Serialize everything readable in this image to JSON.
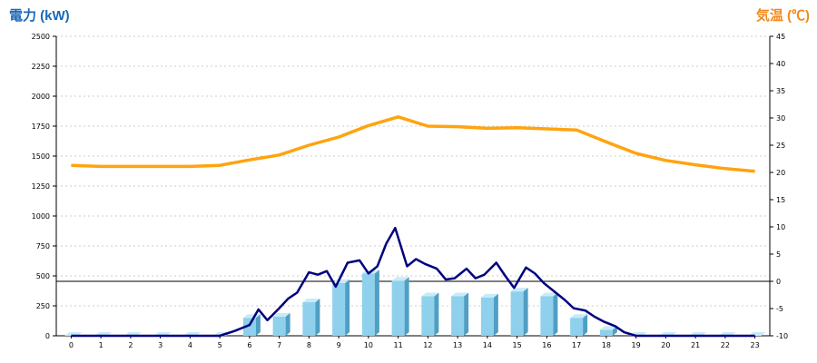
{
  "left_axis_title": "電力 (kW)",
  "right_axis_title": "気温 (℃)",
  "colors": {
    "bar_front": "#8fd0ec",
    "bar_side": "#4f9fc4",
    "bar_top": "#c8ebf8",
    "power_line": "#00007f",
    "temp_line": "#ffa30f",
    "grid": "#bdbdbd",
    "left_title": "#1b69b6",
    "right_title": "#f08a1c"
  },
  "chart_data": {
    "type": "bar",
    "categories": [
      "0",
      "1",
      "2",
      "3",
      "4",
      "5",
      "6",
      "7",
      "8",
      "9",
      "10",
      "11",
      "12",
      "13",
      "14",
      "15",
      "16",
      "17",
      "18",
      "19",
      "20",
      "21",
      "22",
      "23"
    ],
    "y_left": {
      "ticks": [
        "0",
        "250",
        "500",
        "750",
        "1000",
        "1250",
        "1500",
        "1750",
        "2000",
        "2250",
        "2500"
      ],
      "ylim": [
        0,
        2500
      ]
    },
    "y_right": {
      "ticks": [
        "-10",
        "-5",
        "0",
        "5",
        "10",
        "15",
        "20",
        "25",
        "30",
        "35",
        "40",
        "45"
      ],
      "ylim": [
        -10,
        45
      ]
    },
    "reference_line": {
      "axis": "right",
      "value": 0
    },
    "grid": true,
    "series": [
      {
        "type": "bar",
        "axis": "left",
        "values": [
          0,
          0,
          0,
          0,
          0,
          0,
          150,
          160,
          280,
          440,
          520,
          460,
          330,
          330,
          320,
          370,
          330,
          150,
          50,
          0,
          0,
          0,
          0,
          0
        ]
      },
      {
        "type": "line",
        "axis": "left",
        "x": [
          0,
          1,
          2,
          3,
          4,
          5,
          5.5,
          6,
          6.3,
          6.6,
          7,
          7.3,
          7.6,
          8,
          8.3,
          8.6,
          8.9,
          9.3,
          9.7,
          10,
          10.3,
          10.6,
          10.9,
          11.3,
          11.6,
          11.9,
          12.3,
          12.6,
          12.9,
          13.3,
          13.6,
          13.9,
          14.3,
          14.6,
          14.9,
          15.3,
          15.6,
          15.9,
          16.3,
          16.6,
          16.9,
          17.3,
          17.6,
          17.9,
          18.3,
          18.6,
          19,
          20,
          21,
          22,
          23
        ],
        "values": [
          0,
          0,
          0,
          0,
          0,
          0,
          40,
          90,
          220,
          130,
          230,
          310,
          360,
          530,
          510,
          540,
          410,
          610,
          630,
          520,
          580,
          770,
          900,
          580,
          640,
          600,
          560,
          470,
          480,
          560,
          480,
          510,
          610,
          500,
          400,
          570,
          520,
          440,
          360,
          300,
          230,
          210,
          160,
          120,
          80,
          30,
          0,
          0,
          0,
          0,
          0
        ]
      },
      {
        "type": "line",
        "axis": "right",
        "values": [
          21.3,
          21.1,
          21.1,
          21.1,
          21.1,
          21.3,
          22.3,
          23.2,
          25,
          26.5,
          28.6,
          30.2,
          28.5,
          28.4,
          28.1,
          28.2,
          28,
          27.8,
          25.6,
          23.5,
          22.2,
          21.4,
          20.7,
          20.2
        ]
      }
    ]
  }
}
